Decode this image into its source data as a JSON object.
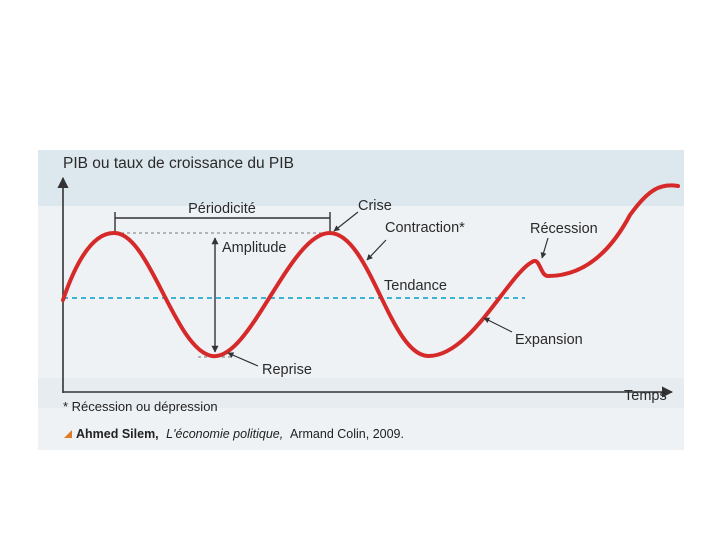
{
  "diagram": {
    "y_axis_label": "PIB ou taux de croissance du PIB",
    "x_axis_label": "Temps",
    "labels": {
      "periodicite": "Périodicité",
      "crise": "Crise",
      "contraction": "Contraction*",
      "recession": "Récession",
      "amplitude": "Amplitude",
      "tendance": "Tendance",
      "expansion": "Expansion",
      "reprise": "Reprise"
    },
    "footnote": "* Récession ou dépression",
    "source": {
      "author": "Ahmed Silem,",
      "work": "L'économie politique,",
      "publisher": "Armand Colin, 2009."
    },
    "colors": {
      "curve": "#d62a2a",
      "trend": "#3fb3d2",
      "axis": "#333333",
      "source_marker": "#e07b2a"
    }
  }
}
